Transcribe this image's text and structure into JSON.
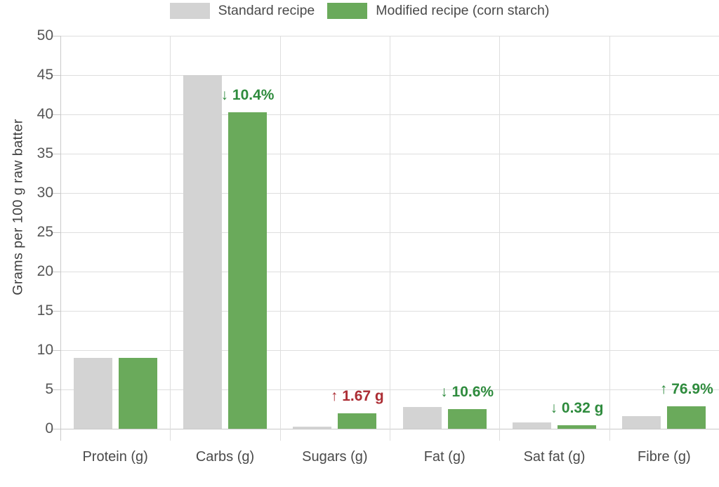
{
  "chart_data": {
    "type": "bar",
    "title": "",
    "xlabel": "",
    "ylabel": "Grams per 100 g raw batter",
    "ylim": [
      0,
      50
    ],
    "yticks": [
      0,
      5,
      10,
      15,
      20,
      25,
      30,
      35,
      40,
      45,
      50
    ],
    "grid": true,
    "legend_position": "top",
    "categories": [
      "Protein (g)",
      "Carbs (g)",
      "Sugars (g)",
      "Fat (g)",
      "Sat fat (g)",
      "Fibre (g)"
    ],
    "series": [
      {
        "name": "Standard recipe",
        "color": "#d3d3d3",
        "values": [
          9.0,
          45.0,
          0.3,
          2.8,
          0.8,
          1.6
        ]
      },
      {
        "name": "Modified recipe (corn starch)",
        "color": "#6aaa5b",
        "values": [
          9.0,
          40.3,
          1.97,
          2.5,
          0.48,
          2.83
        ]
      }
    ],
    "annotations": [
      {
        "category_index": 1,
        "text": "↓ 10.4%",
        "direction": "down",
        "color": "#2e8b3d"
      },
      {
        "category_index": 2,
        "text": "↑ 1.67 g",
        "direction": "up",
        "color": "#ac2d34"
      },
      {
        "category_index": 3,
        "text": "↓ 10.6%",
        "direction": "down",
        "color": "#2e8b3d"
      },
      {
        "category_index": 4,
        "text": "↓ 0.32 g",
        "direction": "down",
        "color": "#2e8b3d"
      },
      {
        "category_index": 5,
        "text": "↑ 76.9%",
        "direction": "up",
        "color": "#2e8b3d"
      }
    ],
    "colors": {
      "standard_bar": "#d3d3d3",
      "modified_bar": "#6aaa5b",
      "increase_bad_text": "#ac2d34",
      "good_change_text": "#2e8b3d",
      "gridline": "#dedede",
      "axis_line": "#c9c9c9",
      "axis_text": "#565656"
    }
  }
}
